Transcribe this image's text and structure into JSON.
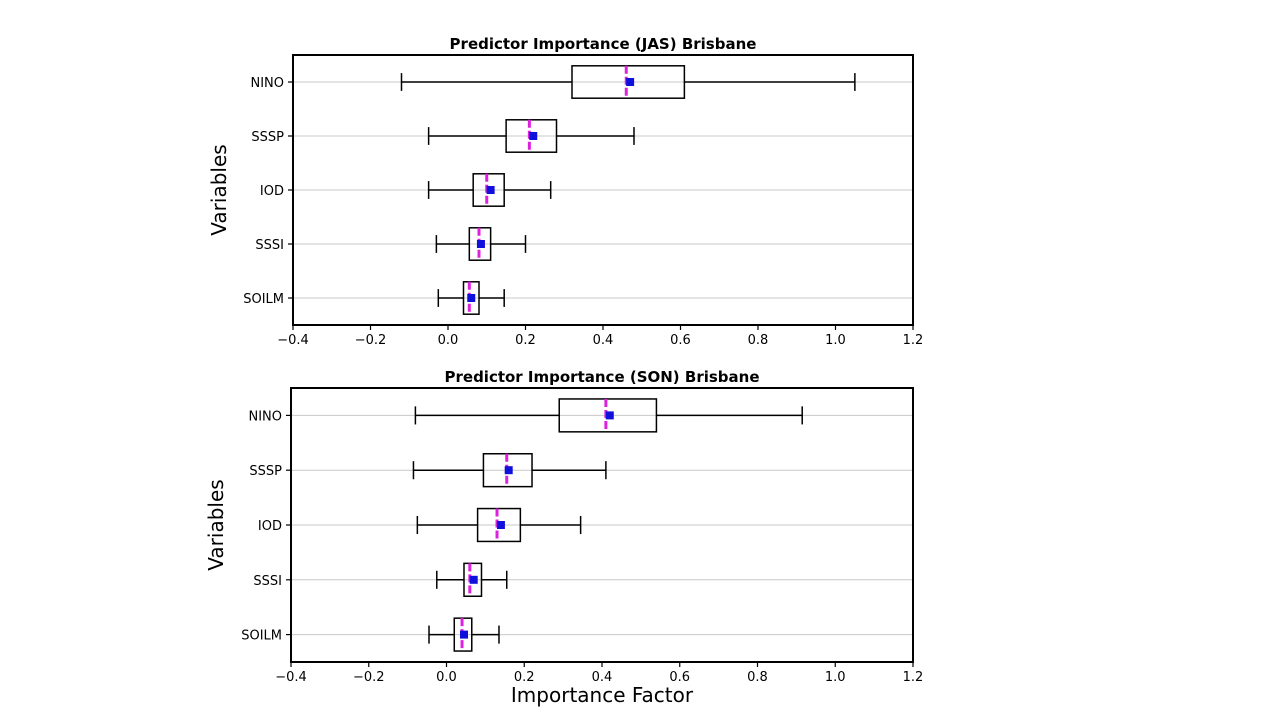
{
  "chart_data": [
    {
      "type": "boxplot",
      "orientation": "horizontal",
      "title": "Predictor Importance (JAS) Brisbane",
      "ylabel": "Variables",
      "xlabel": "",
      "xlim": [
        -0.4,
        1.2
      ],
      "xticks": [
        -0.4,
        -0.2,
        0.0,
        0.2,
        0.4,
        0.6,
        0.8,
        1.0,
        1.2
      ],
      "xtick_labels": [
        "−0.4",
        "−0.2",
        "0.0",
        "0.2",
        "0.4",
        "0.6",
        "0.8",
        "1.0",
        "1.2"
      ],
      "grid": "horizontal",
      "categories": [
        "NINO",
        "SSSP",
        "IOD",
        "SSSI",
        "SOILM"
      ],
      "boxes": [
        {
          "label": "NINO",
          "whisker_low": -0.12,
          "q1": 0.32,
          "median": 0.46,
          "q3": 0.61,
          "whisker_high": 1.05,
          "mean": 0.47
        },
        {
          "label": "SSSP",
          "whisker_low": -0.05,
          "q1": 0.15,
          "median": 0.21,
          "q3": 0.28,
          "whisker_high": 0.48,
          "mean": 0.22
        },
        {
          "label": "IOD",
          "whisker_low": -0.05,
          "q1": 0.065,
          "median": 0.1,
          "q3": 0.145,
          "whisker_high": 0.265,
          "mean": 0.11
        },
        {
          "label": "SSSI",
          "whisker_low": -0.03,
          "q1": 0.055,
          "median": 0.08,
          "q3": 0.11,
          "whisker_high": 0.2,
          "mean": 0.085
        },
        {
          "label": "SOILM",
          "whisker_low": -0.025,
          "q1": 0.04,
          "median": 0.055,
          "q3": 0.08,
          "whisker_high": 0.145,
          "mean": 0.06
        }
      ]
    },
    {
      "type": "boxplot",
      "orientation": "horizontal",
      "title": "Predictor Importance (SON) Brisbane",
      "ylabel": "Variables",
      "xlabel": "Importance Factor",
      "xlim": [
        -0.4,
        1.2
      ],
      "xticks": [
        -0.4,
        -0.2,
        0.0,
        0.2,
        0.4,
        0.6,
        0.8,
        1.0,
        1.2
      ],
      "xtick_labels": [
        "−0.4",
        "−0.2",
        "0.0",
        "0.2",
        "0.4",
        "0.6",
        "0.8",
        "1.0",
        "1.2"
      ],
      "grid": "horizontal",
      "categories": [
        "NINO",
        "SSSP",
        "IOD",
        "SSSI",
        "SOILM"
      ],
      "boxes": [
        {
          "label": "NINO",
          "whisker_low": -0.08,
          "q1": 0.29,
          "median": 0.41,
          "q3": 0.54,
          "whisker_high": 0.915,
          "mean": 0.42
        },
        {
          "label": "SSSP",
          "whisker_low": -0.085,
          "q1": 0.095,
          "median": 0.155,
          "q3": 0.22,
          "whisker_high": 0.41,
          "mean": 0.16
        },
        {
          "label": "IOD",
          "whisker_low": -0.075,
          "q1": 0.08,
          "median": 0.13,
          "q3": 0.19,
          "whisker_high": 0.345,
          "mean": 0.14
        },
        {
          "label": "SSSI",
          "whisker_low": -0.025,
          "q1": 0.045,
          "median": 0.06,
          "q3": 0.09,
          "whisker_high": 0.155,
          "mean": 0.07
        },
        {
          "label": "SOILM",
          "whisker_low": -0.045,
          "q1": 0.02,
          "median": 0.04,
          "q3": 0.065,
          "whisker_high": 0.135,
          "mean": 0.045
        }
      ]
    }
  ],
  "colors": {
    "median": "#dd22dd",
    "mean": "#1010dd",
    "box": "#000000",
    "grid": "#c8c8c8"
  }
}
